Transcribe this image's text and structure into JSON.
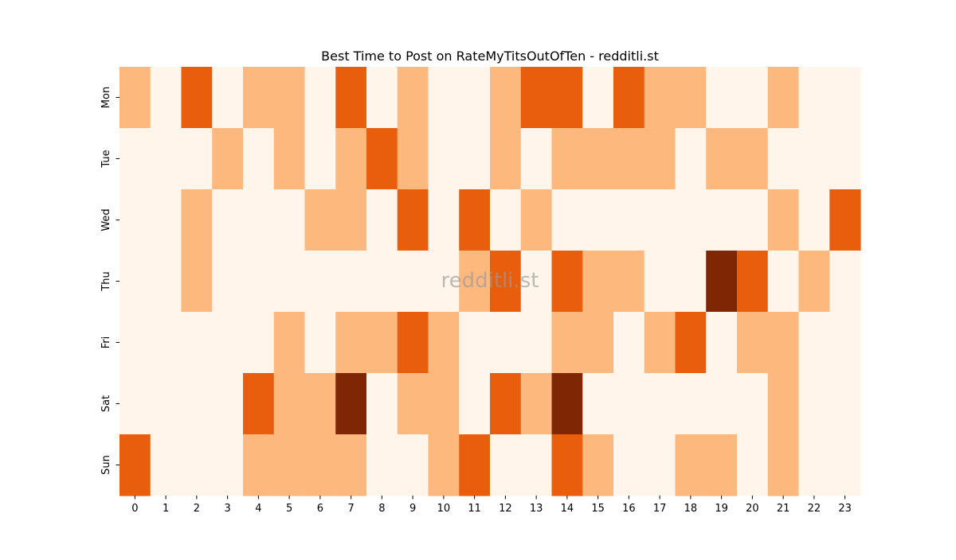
{
  "chart_data": {
    "type": "heatmap",
    "title": "Best Time to Post on RateMyTitsOutOfTen - redditli.st",
    "xlabel": "",
    "ylabel": "",
    "x_categories": [
      "0",
      "1",
      "2",
      "3",
      "4",
      "5",
      "6",
      "7",
      "8",
      "9",
      "10",
      "11",
      "12",
      "13",
      "14",
      "15",
      "16",
      "17",
      "18",
      "19",
      "20",
      "21",
      "22",
      "23"
    ],
    "y_categories": [
      "Mon",
      "Tue",
      "Wed",
      "Thu",
      "Fri",
      "Sat",
      "Sun"
    ],
    "values": [
      [
        1,
        0,
        2,
        0,
        1,
        1,
        0,
        2,
        0,
        1,
        0,
        0,
        1,
        2,
        2,
        0,
        2,
        1,
        1,
        0,
        0,
        1,
        0,
        0
      ],
      [
        0,
        0,
        0,
        1,
        0,
        1,
        0,
        1,
        2,
        1,
        0,
        0,
        1,
        0,
        1,
        1,
        1,
        1,
        0,
        1,
        1,
        0,
        0,
        0
      ],
      [
        0,
        0,
        1,
        0,
        0,
        0,
        1,
        1,
        0,
        2,
        0,
        2,
        0,
        1,
        0,
        0,
        0,
        0,
        0,
        0,
        0,
        1,
        0,
        2
      ],
      [
        0,
        0,
        1,
        0,
        0,
        0,
        0,
        0,
        0,
        0,
        0,
        1,
        2,
        0,
        2,
        1,
        1,
        0,
        0,
        3,
        2,
        0,
        1,
        0
      ],
      [
        0,
        0,
        0,
        0,
        0,
        1,
        0,
        1,
        1,
        2,
        1,
        0,
        0,
        0,
        1,
        1,
        0,
        1,
        2,
        0,
        1,
        1,
        0,
        0
      ],
      [
        0,
        0,
        0,
        0,
        2,
        1,
        1,
        3,
        0,
        1,
        1,
        0,
        2,
        1,
        3,
        0,
        0,
        0,
        0,
        0,
        0,
        1,
        0,
        0
      ],
      [
        2,
        0,
        0,
        0,
        1,
        1,
        1,
        1,
        0,
        0,
        1,
        2,
        0,
        0,
        2,
        1,
        0,
        0,
        1,
        1,
        0,
        1,
        0,
        0
      ]
    ],
    "vmin": 0,
    "vmax": 3,
    "colormap": "Oranges",
    "colors": [
      "#fff5eb",
      "#fdb87e",
      "#e95e0d",
      "#7f2704"
    ],
    "colorbar": false,
    "grid": false
  },
  "watermark": "redditli.st"
}
